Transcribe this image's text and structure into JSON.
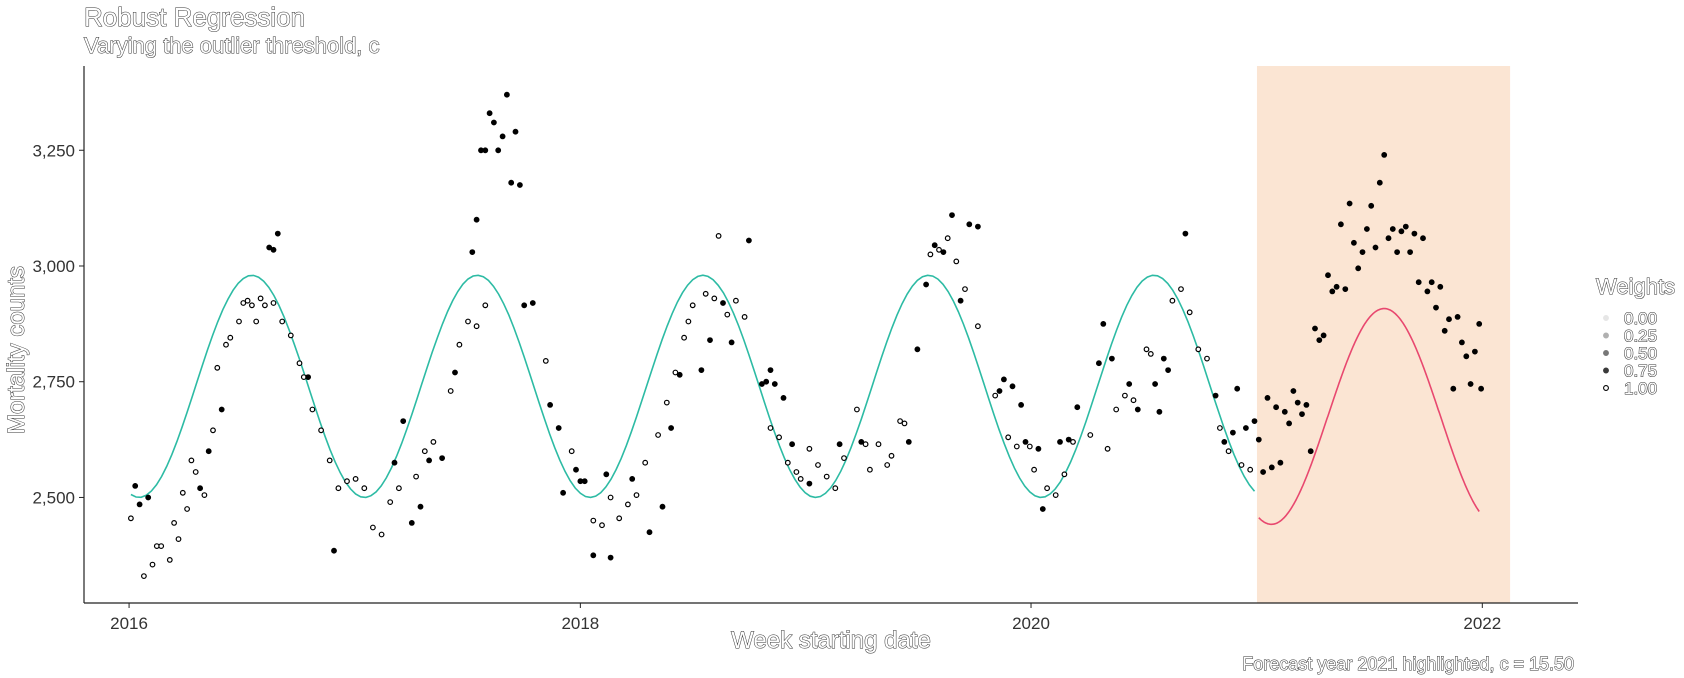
{
  "chart_data": {
    "type": "scatter",
    "title": "Robust Regression",
    "subtitle": "Varying the outlier threshold, c",
    "xlabel": "Week starting date",
    "ylabel": "Mortality counts",
    "caption": "Forecast year 2021 highlighted, c = 15.50",
    "grid": false,
    "x_ticks": [
      "2016",
      "2018",
      "2020",
      "2022"
    ],
    "y_ticks": [
      2500,
      2750,
      3000,
      3250
    ],
    "y_tick_labels": [
      "2,500",
      "2,750",
      "3,000",
      "3,250"
    ],
    "xlim": [
      "2015-10-20",
      "2022-06-05"
    ],
    "ylim": [
      2272,
      3432
    ],
    "highlight": {
      "from": "2021-01-01",
      "to": "2022-02-15",
      "color": "#fbe5d3"
    },
    "legend": {
      "title": "Weights",
      "placement": "right",
      "entries": [
        "0.00",
        "0.25",
        "0.50",
        "0.75",
        "1.00"
      ]
    },
    "fit_line": {
      "color": "#2dbba4",
      "from": "2016-01-04",
      "to": "2020-12-28",
      "mean": 2740,
      "amplitude": 240,
      "peak_date": "2016-07-18"
    },
    "forecast_line": {
      "color": "#e8486f",
      "from": "2021-01-04",
      "to": "2021-12-27",
      "mean": 2675,
      "amplitude": 233,
      "peak_date": "2021-07-26"
    },
    "series": [
      {
        "weight": 1.0,
        "points": [
          [
            "2016-01-04",
            2455
          ],
          [
            "2016-01-25",
            2330
          ],
          [
            "2016-02-08",
            2355
          ],
          [
            "2016-02-15",
            2395
          ],
          [
            "2016-02-22",
            2395
          ],
          [
            "2016-03-07",
            2365
          ],
          [
            "2016-03-14",
            2445
          ],
          [
            "2016-03-21",
            2410
          ],
          [
            "2016-03-28",
            2510
          ],
          [
            "2016-04-04",
            2475
          ],
          [
            "2016-04-11",
            2580
          ],
          [
            "2016-04-18",
            2555
          ],
          [
            "2016-05-02",
            2505
          ],
          [
            "2016-05-16",
            2645
          ],
          [
            "2016-05-23",
            2780
          ],
          [
            "2016-06-06",
            2830
          ],
          [
            "2016-06-13",
            2845
          ],
          [
            "2016-06-27",
            2880
          ],
          [
            "2016-07-04",
            2920
          ],
          [
            "2016-07-11",
            2925
          ],
          [
            "2016-07-18",
            2915
          ],
          [
            "2016-07-25",
            2880
          ],
          [
            "2016-08-01",
            2930
          ],
          [
            "2016-08-08",
            2915
          ],
          [
            "2016-08-22",
            2920
          ],
          [
            "2016-09-05",
            2880
          ],
          [
            "2016-09-19",
            2850
          ],
          [
            "2016-10-03",
            2790
          ],
          [
            "2016-10-10",
            2760
          ],
          [
            "2016-10-24",
            2690
          ],
          [
            "2016-11-07",
            2645
          ],
          [
            "2016-11-21",
            2580
          ],
          [
            "2016-12-05",
            2520
          ],
          [
            "2016-12-19",
            2535
          ],
          [
            "2017-01-02",
            2540
          ],
          [
            "2017-01-16",
            2520
          ],
          [
            "2017-01-30",
            2435
          ],
          [
            "2017-02-13",
            2420
          ],
          [
            "2017-02-27",
            2490
          ],
          [
            "2017-03-13",
            2520
          ],
          [
            "2017-04-10",
            2545
          ],
          [
            "2017-04-24",
            2600
          ],
          [
            "2017-05-08",
            2620
          ],
          [
            "2017-06-05",
            2730
          ],
          [
            "2017-06-19",
            2830
          ],
          [
            "2017-07-03",
            2880
          ],
          [
            "2017-07-17",
            2870
          ],
          [
            "2017-07-31",
            2915
          ],
          [
            "2017-11-06",
            2795
          ],
          [
            "2017-12-18",
            2600
          ],
          [
            "2018-01-22",
            2450
          ],
          [
            "2018-02-05",
            2440
          ],
          [
            "2018-02-19",
            2500
          ],
          [
            "2018-03-05",
            2455
          ],
          [
            "2018-03-19",
            2485
          ],
          [
            "2018-04-02",
            2505
          ],
          [
            "2018-04-16",
            2575
          ],
          [
            "2018-05-07",
            2635
          ],
          [
            "2018-05-21",
            2705
          ],
          [
            "2018-06-04",
            2770
          ],
          [
            "2018-06-18",
            2845
          ],
          [
            "2018-06-25",
            2880
          ],
          [
            "2018-07-02",
            2915
          ],
          [
            "2018-07-23",
            2940
          ],
          [
            "2018-08-06",
            2930
          ],
          [
            "2018-08-13",
            3065
          ],
          [
            "2018-08-27",
            2895
          ],
          [
            "2018-09-10",
            2925
          ],
          [
            "2018-09-24",
            2890
          ],
          [
            "2018-11-05",
            2650
          ],
          [
            "2018-11-19",
            2630
          ],
          [
            "2018-12-03",
            2575
          ],
          [
            "2018-12-17",
            2555
          ],
          [
            "2018-12-24",
            2540
          ],
          [
            "2019-01-07",
            2605
          ],
          [
            "2019-01-21",
            2570
          ],
          [
            "2019-02-04",
            2545
          ],
          [
            "2019-02-18",
            2520
          ],
          [
            "2019-03-04",
            2585
          ],
          [
            "2019-03-25",
            2690
          ],
          [
            "2019-04-08",
            2615
          ],
          [
            "2019-04-15",
            2560
          ],
          [
            "2019-04-29",
            2615
          ],
          [
            "2019-05-13",
            2570
          ],
          [
            "2019-05-20",
            2590
          ],
          [
            "2019-06-03",
            2665
          ],
          [
            "2019-06-10",
            2660
          ],
          [
            "2019-07-22",
            3025
          ],
          [
            "2019-08-05",
            3035
          ],
          [
            "2019-08-19",
            3060
          ],
          [
            "2019-09-02",
            3010
          ],
          [
            "2019-09-16",
            2950
          ],
          [
            "2019-10-07",
            2870
          ],
          [
            "2019-11-04",
            2720
          ],
          [
            "2019-11-25",
            2630
          ],
          [
            "2019-12-09",
            2610
          ],
          [
            "2019-12-30",
            2610
          ],
          [
            "2020-01-06",
            2560
          ],
          [
            "2020-01-27",
            2520
          ],
          [
            "2020-02-10",
            2505
          ],
          [
            "2020-02-24",
            2550
          ],
          [
            "2020-03-09",
            2620
          ],
          [
            "2020-04-06",
            2635
          ],
          [
            "2020-05-04",
            2605
          ],
          [
            "2020-05-18",
            2690
          ],
          [
            "2020-06-01",
            2720
          ],
          [
            "2020-06-15",
            2710
          ],
          [
            "2020-07-06",
            2820
          ],
          [
            "2020-07-13",
            2810
          ],
          [
            "2020-08-17",
            2925
          ],
          [
            "2020-08-31",
            2950
          ],
          [
            "2020-09-14",
            2900
          ],
          [
            "2020-09-28",
            2820
          ],
          [
            "2020-10-12",
            2800
          ],
          [
            "2020-11-02",
            2650
          ],
          [
            "2020-11-16",
            2600
          ],
          [
            "2020-12-07",
            2570
          ],
          [
            "2020-12-21",
            2560
          ]
        ]
      },
      {
        "weight": 0.75,
        "points": [
          [
            "2016-01-11",
            2525
          ],
          [
            "2016-01-18",
            2485
          ],
          [
            "2016-02-01",
            2500
          ],
          [
            "2016-04-25",
            2520
          ],
          [
            "2016-05-09",
            2600
          ],
          [
            "2016-05-30",
            2690
          ],
          [
            "2016-08-15",
            3040
          ],
          [
            "2016-08-22",
            3035
          ],
          [
            "2016-08-29",
            3070
          ],
          [
            "2016-10-17",
            2760
          ],
          [
            "2016-11-28",
            2385
          ],
          [
            "2017-03-06",
            2575
          ],
          [
            "2017-03-20",
            2665
          ],
          [
            "2017-04-03",
            2445
          ],
          [
            "2017-04-17",
            2480
          ],
          [
            "2017-05-01",
            2580
          ],
          [
            "2017-05-22",
            2585
          ],
          [
            "2017-06-12",
            2770
          ],
          [
            "2017-07-10",
            3030
          ],
          [
            "2017-07-17",
            3100
          ],
          [
            "2017-07-24",
            3250
          ],
          [
            "2017-07-31",
            3250
          ],
          [
            "2017-08-07",
            3330
          ],
          [
            "2017-08-14",
            3310
          ],
          [
            "2017-08-21",
            3250
          ],
          [
            "2017-08-28",
            3280
          ],
          [
            "2017-09-04",
            3370
          ],
          [
            "2017-09-11",
            3180
          ],
          [
            "2017-09-18",
            3290
          ],
          [
            "2017-09-25",
            3175
          ],
          [
            "2017-10-02",
            2915
          ],
          [
            "2017-10-16",
            2920
          ],
          [
            "2017-11-13",
            2700
          ],
          [
            "2017-11-27",
            2650
          ],
          [
            "2017-12-04",
            2510
          ],
          [
            "2017-12-25",
            2560
          ],
          [
            "2018-01-01",
            2535
          ],
          [
            "2018-01-08",
            2535
          ],
          [
            "2018-01-22",
            2375
          ],
          [
            "2018-02-12",
            2550
          ],
          [
            "2018-02-19",
            2370
          ],
          [
            "2018-03-26",
            2540
          ],
          [
            "2018-04-23",
            2425
          ],
          [
            "2018-05-14",
            2480
          ],
          [
            "2018-05-28",
            2650
          ],
          [
            "2018-06-11",
            2765
          ],
          [
            "2018-07-16",
            2775
          ],
          [
            "2018-07-30",
            2840
          ],
          [
            "2018-08-20",
            2920
          ],
          [
            "2018-09-03",
            2835
          ],
          [
            "2018-10-01",
            3055
          ],
          [
            "2018-10-22",
            2745
          ],
          [
            "2018-10-29",
            2750
          ],
          [
            "2018-11-05",
            2775
          ],
          [
            "2018-11-12",
            2745
          ],
          [
            "2018-11-26",
            2715
          ],
          [
            "2018-12-10",
            2615
          ],
          [
            "2019-01-07",
            2530
          ],
          [
            "2019-02-25",
            2615
          ],
          [
            "2019-04-01",
            2620
          ],
          [
            "2019-06-17",
            2620
          ],
          [
            "2019-07-01",
            2820
          ],
          [
            "2019-07-15",
            2960
          ],
          [
            "2019-07-29",
            3045
          ],
          [
            "2019-08-12",
            3030
          ],
          [
            "2019-08-26",
            3110
          ],
          [
            "2019-09-09",
            2925
          ],
          [
            "2019-09-23",
            3090
          ],
          [
            "2019-10-07",
            3085
          ],
          [
            "2019-11-11",
            2730
          ],
          [
            "2019-11-18",
            2755
          ],
          [
            "2019-12-02",
            2740
          ],
          [
            "2019-12-16",
            2700
          ],
          [
            "2019-12-23",
            2620
          ],
          [
            "2020-01-13",
            2605
          ],
          [
            "2020-01-20",
            2475
          ],
          [
            "2020-02-17",
            2620
          ],
          [
            "2020-03-02",
            2625
          ],
          [
            "2020-03-16",
            2695
          ],
          [
            "2020-04-20",
            2790
          ],
          [
            "2020-04-27",
            2875
          ],
          [
            "2020-05-11",
            2800
          ],
          [
            "2020-06-08",
            2745
          ],
          [
            "2020-06-22",
            2690
          ],
          [
            "2020-07-20",
            2745
          ],
          [
            "2020-07-27",
            2685
          ],
          [
            "2020-08-03",
            2800
          ],
          [
            "2020-08-10",
            2775
          ],
          [
            "2020-09-07",
            3070
          ],
          [
            "2020-10-26",
            2720
          ],
          [
            "2020-11-09",
            2620
          ],
          [
            "2020-11-23",
            2640
          ],
          [
            "2020-11-30",
            2735
          ],
          [
            "2020-12-14",
            2650
          ],
          [
            "2020-12-28",
            2665
          ],
          [
            "2021-01-04",
            2625
          ],
          [
            "2021-01-11",
            2555
          ],
          [
            "2021-01-18",
            2715
          ],
          [
            "2021-01-25",
            2565
          ],
          [
            "2021-02-01",
            2695
          ],
          [
            "2021-02-08",
            2575
          ],
          [
            "2021-02-15",
            2685
          ],
          [
            "2021-02-22",
            2660
          ],
          [
            "2021-03-01",
            2730
          ],
          [
            "2021-03-08",
            2705
          ],
          [
            "2021-03-15",
            2680
          ],
          [
            "2021-03-22",
            2700
          ],
          [
            "2021-03-29",
            2600
          ],
          [
            "2021-04-05",
            2865
          ],
          [
            "2021-04-12",
            2840
          ],
          [
            "2021-04-19",
            2850
          ],
          [
            "2021-04-26",
            2980
          ],
          [
            "2021-05-03",
            2945
          ],
          [
            "2021-05-10",
            2955
          ],
          [
            "2021-05-17",
            3090
          ],
          [
            "2021-05-24",
            2950
          ],
          [
            "2021-05-31",
            3135
          ],
          [
            "2021-06-07",
            3050
          ],
          [
            "2021-06-14",
            2995
          ],
          [
            "2021-06-21",
            3030
          ],
          [
            "2021-06-28",
            3080
          ],
          [
            "2021-07-05",
            3130
          ],
          [
            "2021-07-12",
            3040
          ],
          [
            "2021-07-19",
            3180
          ],
          [
            "2021-07-26",
            3240
          ],
          [
            "2021-08-02",
            3060
          ],
          [
            "2021-08-09",
            3080
          ],
          [
            "2021-08-16",
            3030
          ],
          [
            "2021-08-23",
            3075
          ],
          [
            "2021-08-30",
            3085
          ],
          [
            "2021-09-06",
            3030
          ],
          [
            "2021-09-13",
            3070
          ],
          [
            "2021-09-20",
            2965
          ],
          [
            "2021-09-27",
            3060
          ],
          [
            "2021-10-04",
            2945
          ],
          [
            "2021-10-11",
            2965
          ],
          [
            "2021-10-18",
            2910
          ],
          [
            "2021-10-25",
            2955
          ],
          [
            "2021-11-01",
            2860
          ],
          [
            "2021-11-08",
            2885
          ],
          [
            "2021-11-15",
            2735
          ],
          [
            "2021-11-22",
            2890
          ],
          [
            "2021-11-29",
            2835
          ],
          [
            "2021-12-06",
            2805
          ],
          [
            "2021-12-13",
            2745
          ],
          [
            "2021-12-20",
            2815
          ],
          [
            "2021-12-27",
            2875
          ],
          [
            "2021-12-30",
            2735
          ]
        ]
      }
    ]
  }
}
